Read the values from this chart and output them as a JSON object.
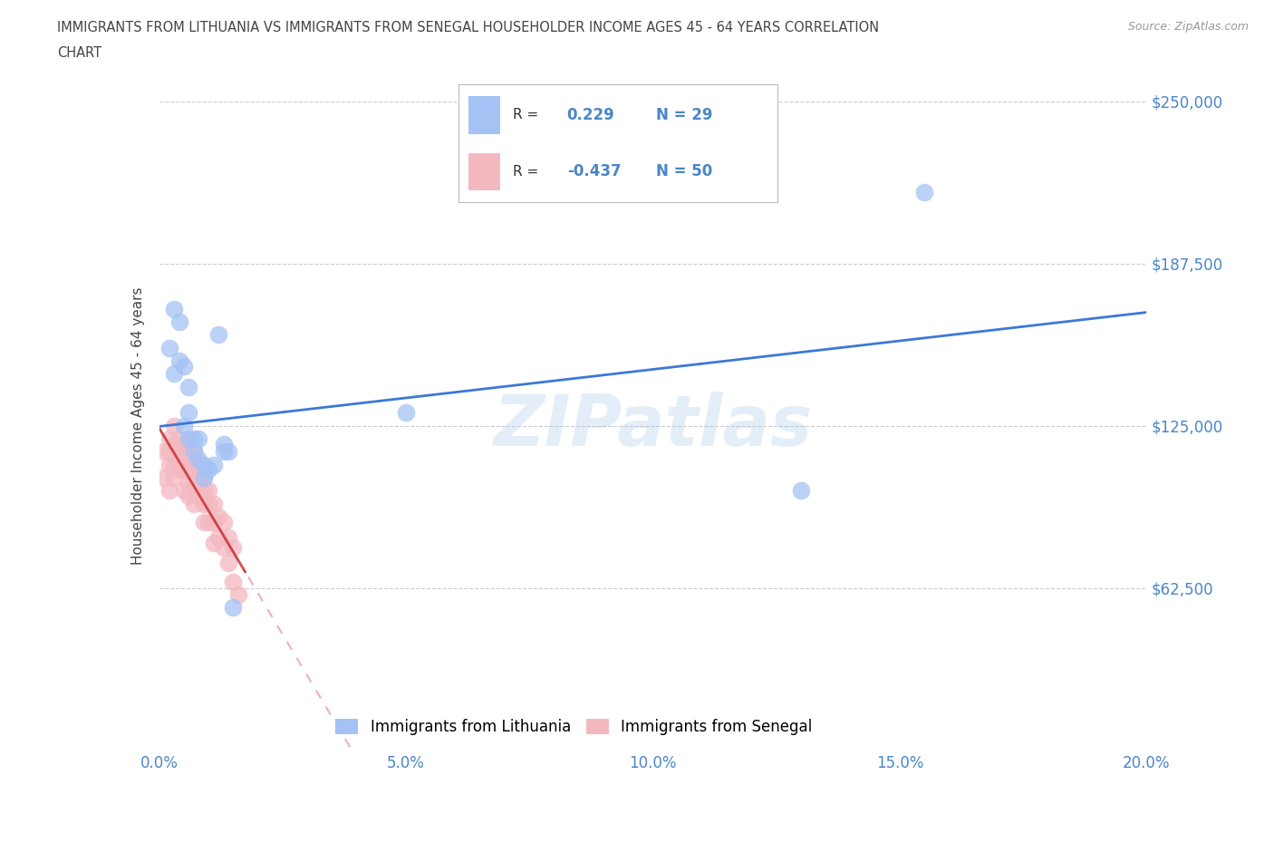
{
  "title_line1": "IMMIGRANTS FROM LITHUANIA VS IMMIGRANTS FROM SENEGAL HOUSEHOLDER INCOME AGES 45 - 64 YEARS CORRELATION",
  "title_line2": "CHART",
  "source": "Source: ZipAtlas.com",
  "ylabel": "Householder Income Ages 45 - 64 years",
  "xlim": [
    0.0,
    0.2
  ],
  "ylim": [
    0,
    250000
  ],
  "yticks": [
    0,
    62500,
    125000,
    187500,
    250000
  ],
  "ytick_labels": [
    "",
    "$62,500",
    "$125,000",
    "$187,500",
    "$250,000"
  ],
  "xtick_labels": [
    "0.0%",
    "5.0%",
    "10.0%",
    "15.0%",
    "20.0%"
  ],
  "xticks": [
    0.0,
    0.05,
    0.1,
    0.15,
    0.2
  ],
  "watermark": "ZIPatlas",
  "blue_color": "#a4c2f4",
  "pink_color": "#f4b8c1",
  "blue_line_color": "#3c78d8",
  "pink_line_color": "#cc4444",
  "pink_line_dash_color": "#e06666",
  "background_color": "#ffffff",
  "grid_color": "#cccccc",
  "text_color": "#444444",
  "axis_color": "#4a86c8",
  "lithuania_x": [
    0.002,
    0.003,
    0.003,
    0.004,
    0.004,
    0.005,
    0.005,
    0.006,
    0.006,
    0.006,
    0.007,
    0.007,
    0.008,
    0.008,
    0.009,
    0.009,
    0.01,
    0.011,
    0.012,
    0.013,
    0.013,
    0.014,
    0.015,
    0.05,
    0.13,
    0.155
  ],
  "lithuania_y": [
    155000,
    170000,
    145000,
    150000,
    165000,
    148000,
    125000,
    130000,
    140000,
    120000,
    120000,
    115000,
    112000,
    120000,
    110000,
    105000,
    108000,
    110000,
    160000,
    118000,
    115000,
    115000,
    55000,
    130000,
    100000,
    215000
  ],
  "senegal_x": [
    0.001,
    0.001,
    0.002,
    0.002,
    0.002,
    0.002,
    0.003,
    0.003,
    0.003,
    0.003,
    0.004,
    0.004,
    0.004,
    0.005,
    0.005,
    0.005,
    0.005,
    0.005,
    0.006,
    0.006,
    0.006,
    0.006,
    0.006,
    0.007,
    0.007,
    0.007,
    0.007,
    0.007,
    0.008,
    0.008,
    0.008,
    0.009,
    0.009,
    0.009,
    0.009,
    0.01,
    0.01,
    0.01,
    0.011,
    0.011,
    0.011,
    0.012,
    0.012,
    0.013,
    0.013,
    0.014,
    0.014,
    0.015,
    0.015,
    0.016
  ],
  "senegal_y": [
    115000,
    105000,
    120000,
    115000,
    110000,
    100000,
    125000,
    118000,
    110000,
    105000,
    120000,
    115000,
    108000,
    118000,
    115000,
    112000,
    108000,
    100000,
    115000,
    112000,
    108000,
    103000,
    98000,
    115000,
    110000,
    105000,
    100000,
    95000,
    110000,
    105000,
    98000,
    105000,
    100000,
    95000,
    88000,
    100000,
    95000,
    88000,
    95000,
    88000,
    80000,
    90000,
    82000,
    88000,
    78000,
    82000,
    72000,
    78000,
    65000,
    60000
  ]
}
